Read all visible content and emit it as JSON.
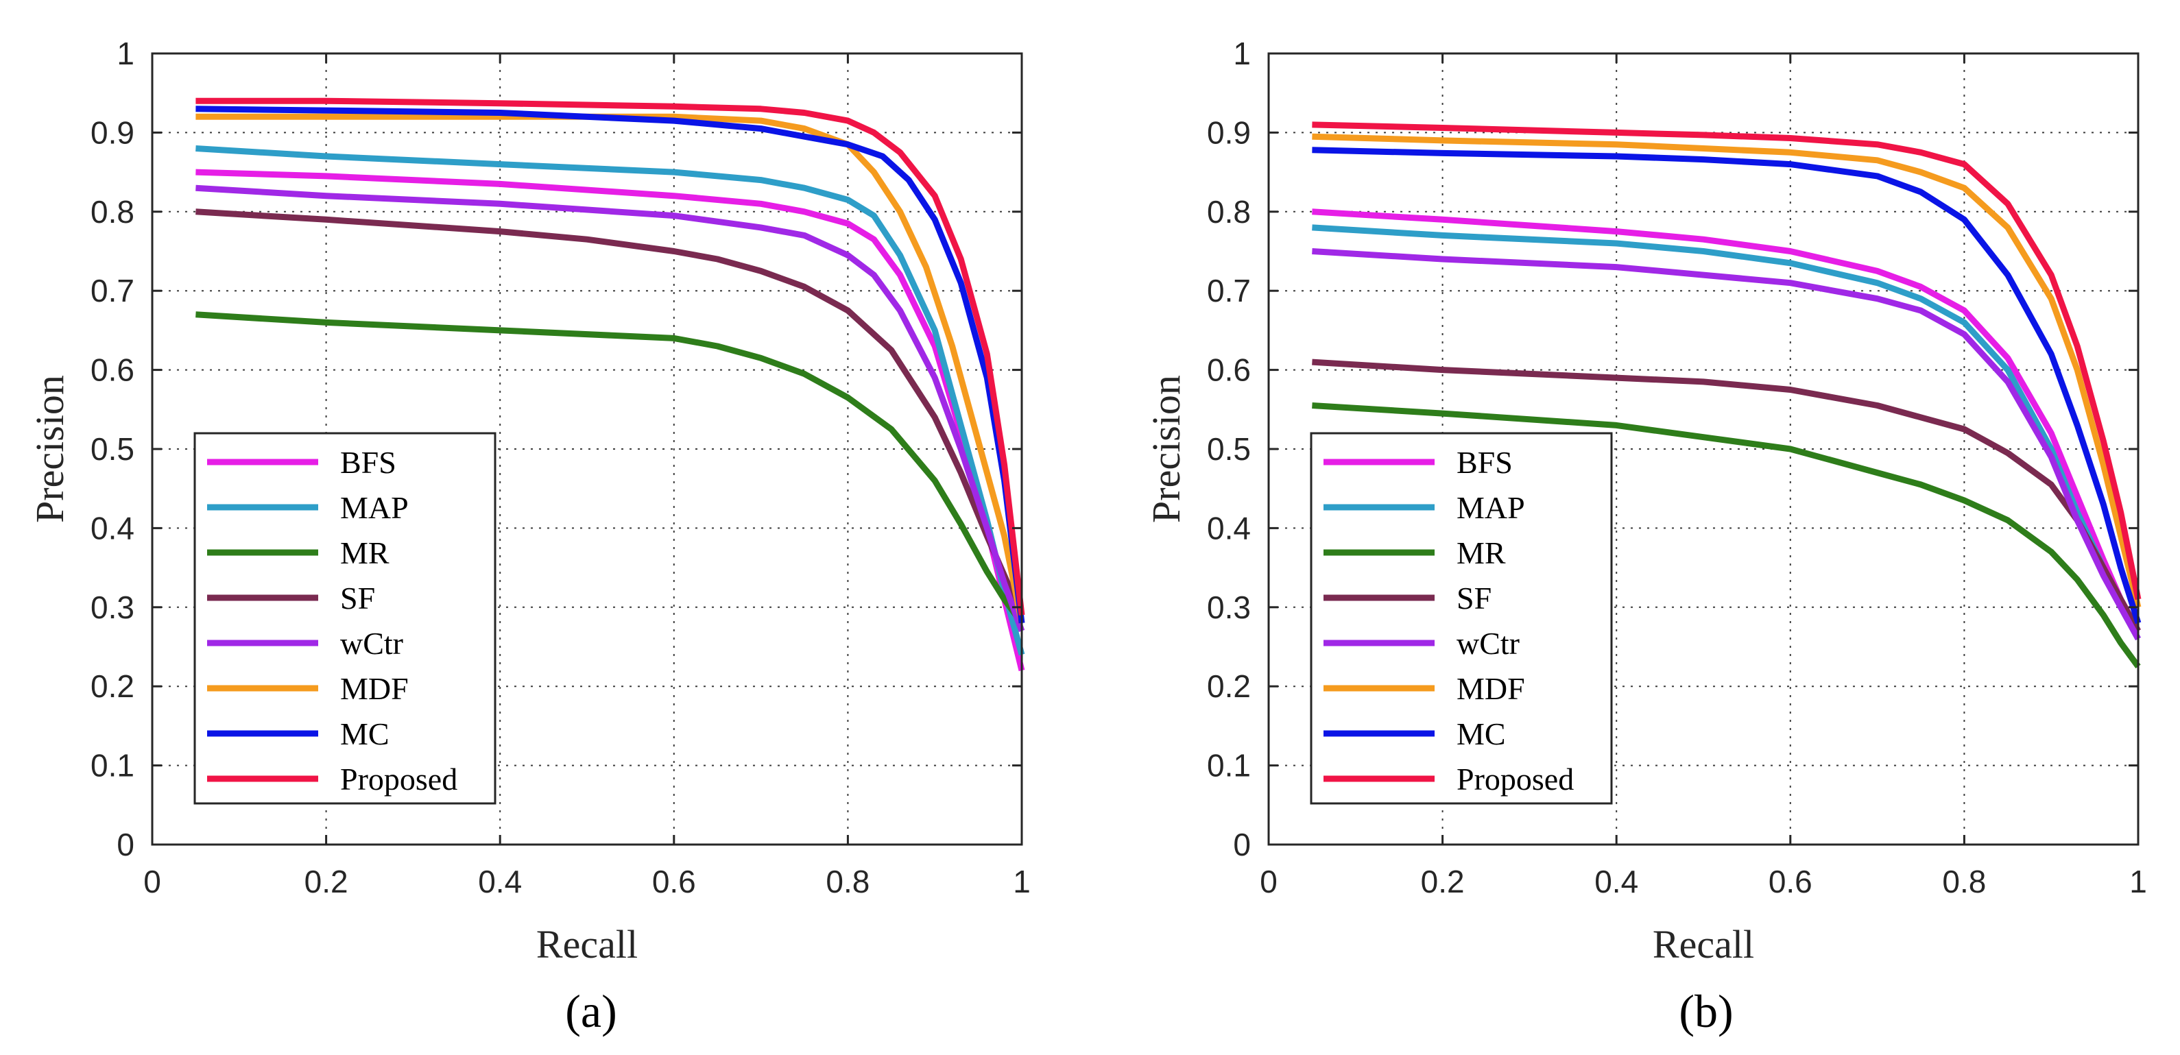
{
  "chart_data": [
    {
      "type": "line",
      "caption": "(a)",
      "xlabel": "Recall",
      "ylabel": "Precision",
      "xlim": [
        0,
        1
      ],
      "ylim": [
        0,
        1
      ],
      "xticks": [
        "0",
        "0.2",
        "0.4",
        "0.6",
        "0.8",
        "1"
      ],
      "yticks": [
        "0",
        "0.1",
        "0.2",
        "0.3",
        "0.4",
        "0.5",
        "0.6",
        "0.7",
        "0.8",
        "0.9",
        "1"
      ],
      "grid": true,
      "legend_position": "bottom-left",
      "series": [
        {
          "name": "BFS",
          "color": "#e61ee6",
          "points": [
            [
              0.05,
              0.85
            ],
            [
              0.2,
              0.845
            ],
            [
              0.4,
              0.835
            ],
            [
              0.6,
              0.82
            ],
            [
              0.7,
              0.81
            ],
            [
              0.75,
              0.8
            ],
            [
              0.8,
              0.785
            ],
            [
              0.83,
              0.765
            ],
            [
              0.86,
              0.72
            ],
            [
              0.9,
              0.63
            ],
            [
              0.93,
              0.52
            ],
            [
              0.96,
              0.4
            ],
            [
              0.98,
              0.31
            ],
            [
              1.0,
              0.22
            ]
          ]
        },
        {
          "name": "MAP",
          "color": "#2e9ec8",
          "points": [
            [
              0.05,
              0.88
            ],
            [
              0.2,
              0.87
            ],
            [
              0.4,
              0.86
            ],
            [
              0.6,
              0.85
            ],
            [
              0.7,
              0.84
            ],
            [
              0.75,
              0.83
            ],
            [
              0.8,
              0.815
            ],
            [
              0.83,
              0.795
            ],
            [
              0.86,
              0.745
            ],
            [
              0.9,
              0.65
            ],
            [
              0.93,
              0.53
            ],
            [
              0.96,
              0.41
            ],
            [
              0.98,
              0.32
            ],
            [
              1.0,
              0.24
            ]
          ]
        },
        {
          "name": "MR",
          "color": "#2e7d1a",
          "points": [
            [
              0.05,
              0.67
            ],
            [
              0.2,
              0.66
            ],
            [
              0.4,
              0.65
            ],
            [
              0.6,
              0.64
            ],
            [
              0.65,
              0.63
            ],
            [
              0.7,
              0.615
            ],
            [
              0.75,
              0.595
            ],
            [
              0.8,
              0.565
            ],
            [
              0.85,
              0.525
            ],
            [
              0.9,
              0.46
            ],
            [
              0.93,
              0.405
            ],
            [
              0.96,
              0.345
            ],
            [
              0.98,
              0.31
            ],
            [
              1.0,
              0.28
            ]
          ]
        },
        {
          "name": "SF",
          "color": "#7a2a50",
          "points": [
            [
              0.05,
              0.8
            ],
            [
              0.2,
              0.79
            ],
            [
              0.4,
              0.775
            ],
            [
              0.5,
              0.765
            ],
            [
              0.6,
              0.75
            ],
            [
              0.65,
              0.74
            ],
            [
              0.7,
              0.725
            ],
            [
              0.75,
              0.705
            ],
            [
              0.8,
              0.675
            ],
            [
              0.85,
              0.625
            ],
            [
              0.9,
              0.54
            ],
            [
              0.93,
              0.47
            ],
            [
              0.96,
              0.39
            ],
            [
              0.98,
              0.34
            ],
            [
              1.0,
              0.29
            ]
          ]
        },
        {
          "name": "wCtr",
          "color": "#a028e6",
          "points": [
            [
              0.05,
              0.83
            ],
            [
              0.2,
              0.82
            ],
            [
              0.4,
              0.81
            ],
            [
              0.6,
              0.795
            ],
            [
              0.7,
              0.78
            ],
            [
              0.75,
              0.77
            ],
            [
              0.8,
              0.745
            ],
            [
              0.83,
              0.72
            ],
            [
              0.86,
              0.675
            ],
            [
              0.9,
              0.59
            ],
            [
              0.93,
              0.5
            ],
            [
              0.96,
              0.4
            ],
            [
              0.98,
              0.33
            ],
            [
              1.0,
              0.27
            ]
          ]
        },
        {
          "name": "MDF",
          "color": "#f59b1e",
          "points": [
            [
              0.05,
              0.92
            ],
            [
              0.2,
              0.92
            ],
            [
              0.4,
              0.92
            ],
            [
              0.6,
              0.92
            ],
            [
              0.7,
              0.915
            ],
            [
              0.75,
              0.905
            ],
            [
              0.8,
              0.885
            ],
            [
              0.83,
              0.85
            ],
            [
              0.86,
              0.8
            ],
            [
              0.89,
              0.73
            ],
            [
              0.92,
              0.63
            ],
            [
              0.95,
              0.51
            ],
            [
              0.98,
              0.39
            ],
            [
              1.0,
              0.28
            ]
          ]
        },
        {
          "name": "MC",
          "color": "#0a14e6",
          "points": [
            [
              0.05,
              0.93
            ],
            [
              0.2,
              0.928
            ],
            [
              0.4,
              0.925
            ],
            [
              0.6,
              0.915
            ],
            [
              0.7,
              0.905
            ],
            [
              0.75,
              0.895
            ],
            [
              0.8,
              0.885
            ],
            [
              0.84,
              0.87
            ],
            [
              0.87,
              0.84
            ],
            [
              0.9,
              0.79
            ],
            [
              0.93,
              0.71
            ],
            [
              0.96,
              0.59
            ],
            [
              0.98,
              0.46
            ],
            [
              1.0,
              0.28
            ]
          ]
        },
        {
          "name": "Proposed",
          "color": "#f01446",
          "points": [
            [
              0.05,
              0.94
            ],
            [
              0.2,
              0.94
            ],
            [
              0.4,
              0.937
            ],
            [
              0.6,
              0.933
            ],
            [
              0.7,
              0.93
            ],
            [
              0.75,
              0.925
            ],
            [
              0.8,
              0.915
            ],
            [
              0.83,
              0.9
            ],
            [
              0.86,
              0.875
            ],
            [
              0.9,
              0.82
            ],
            [
              0.93,
              0.74
            ],
            [
              0.96,
              0.62
            ],
            [
              0.98,
              0.48
            ],
            [
              1.0,
              0.29
            ]
          ]
        }
      ]
    },
    {
      "type": "line",
      "caption": "(b)",
      "xlabel": "Recall",
      "ylabel": "Precision",
      "xlim": [
        0,
        1
      ],
      "ylim": [
        0,
        1
      ],
      "xticks": [
        "0",
        "0.2",
        "0.4",
        "0.6",
        "0.8",
        "1"
      ],
      "yticks": [
        "0",
        "0.1",
        "0.2",
        "0.3",
        "0.4",
        "0.5",
        "0.6",
        "0.7",
        "0.8",
        "0.9",
        "1"
      ],
      "grid": true,
      "legend_position": "bottom-left",
      "series": [
        {
          "name": "BFS",
          "color": "#e61ee6",
          "points": [
            [
              0.05,
              0.8
            ],
            [
              0.2,
              0.79
            ],
            [
              0.4,
              0.775
            ],
            [
              0.5,
              0.765
            ],
            [
              0.6,
              0.75
            ],
            [
              0.7,
              0.725
            ],
            [
              0.75,
              0.705
            ],
            [
              0.8,
              0.675
            ],
            [
              0.85,
              0.615
            ],
            [
              0.9,
              0.52
            ],
            [
              0.93,
              0.44
            ],
            [
              0.96,
              0.36
            ],
            [
              0.98,
              0.31
            ],
            [
              1.0,
              0.27
            ]
          ]
        },
        {
          "name": "MAP",
          "color": "#2e9ec8",
          "points": [
            [
              0.05,
              0.78
            ],
            [
              0.2,
              0.77
            ],
            [
              0.4,
              0.76
            ],
            [
              0.5,
              0.75
            ],
            [
              0.6,
              0.735
            ],
            [
              0.7,
              0.71
            ],
            [
              0.75,
              0.69
            ],
            [
              0.8,
              0.66
            ],
            [
              0.85,
              0.6
            ],
            [
              0.9,
              0.5
            ],
            [
              0.93,
              0.42
            ],
            [
              0.96,
              0.35
            ],
            [
              0.98,
              0.3
            ],
            [
              1.0,
              0.26
            ]
          ]
        },
        {
          "name": "MR",
          "color": "#2e7d1a",
          "points": [
            [
              0.05,
              0.555
            ],
            [
              0.2,
              0.545
            ],
            [
              0.4,
              0.53
            ],
            [
              0.5,
              0.515
            ],
            [
              0.6,
              0.5
            ],
            [
              0.7,
              0.47
            ],
            [
              0.75,
              0.455
            ],
            [
              0.8,
              0.435
            ],
            [
              0.85,
              0.41
            ],
            [
              0.9,
              0.37
            ],
            [
              0.93,
              0.335
            ],
            [
              0.96,
              0.29
            ],
            [
              0.98,
              0.255
            ],
            [
              1.0,
              0.225
            ]
          ]
        },
        {
          "name": "SF",
          "color": "#7a2a50",
          "points": [
            [
              0.05,
              0.61
            ],
            [
              0.2,
              0.6
            ],
            [
              0.4,
              0.59
            ],
            [
              0.5,
              0.585
            ],
            [
              0.6,
              0.575
            ],
            [
              0.7,
              0.555
            ],
            [
              0.75,
              0.54
            ],
            [
              0.8,
              0.525
            ],
            [
              0.85,
              0.495
            ],
            [
              0.9,
              0.455
            ],
            [
              0.93,
              0.41
            ],
            [
              0.96,
              0.35
            ],
            [
              0.98,
              0.31
            ],
            [
              1.0,
              0.27
            ]
          ]
        },
        {
          "name": "wCtr",
          "color": "#a028e6",
          "points": [
            [
              0.05,
              0.75
            ],
            [
              0.2,
              0.74
            ],
            [
              0.4,
              0.73
            ],
            [
              0.5,
              0.72
            ],
            [
              0.6,
              0.71
            ],
            [
              0.7,
              0.69
            ],
            [
              0.75,
              0.675
            ],
            [
              0.8,
              0.645
            ],
            [
              0.85,
              0.585
            ],
            [
              0.9,
              0.49
            ],
            [
              0.93,
              0.41
            ],
            [
              0.96,
              0.34
            ],
            [
              0.98,
              0.3
            ],
            [
              1.0,
              0.26
            ]
          ]
        },
        {
          "name": "MDF",
          "color": "#f59b1e",
          "points": [
            [
              0.05,
              0.895
            ],
            [
              0.2,
              0.89
            ],
            [
              0.4,
              0.885
            ],
            [
              0.5,
              0.88
            ],
            [
              0.6,
              0.875
            ],
            [
              0.7,
              0.865
            ],
            [
              0.75,
              0.85
            ],
            [
              0.8,
              0.83
            ],
            [
              0.85,
              0.78
            ],
            [
              0.9,
              0.69
            ],
            [
              0.93,
              0.6
            ],
            [
              0.96,
              0.48
            ],
            [
              0.98,
              0.39
            ],
            [
              1.0,
              0.3
            ]
          ]
        },
        {
          "name": "MC",
          "color": "#0a14e6",
          "points": [
            [
              0.05,
              0.878
            ],
            [
              0.2,
              0.874
            ],
            [
              0.4,
              0.87
            ],
            [
              0.5,
              0.866
            ],
            [
              0.6,
              0.86
            ],
            [
              0.7,
              0.845
            ],
            [
              0.75,
              0.825
            ],
            [
              0.8,
              0.79
            ],
            [
              0.85,
              0.72
            ],
            [
              0.9,
              0.62
            ],
            [
              0.93,
              0.53
            ],
            [
              0.96,
              0.43
            ],
            [
              0.98,
              0.35
            ],
            [
              1.0,
              0.28
            ]
          ]
        },
        {
          "name": "Proposed",
          "color": "#f01446",
          "points": [
            [
              0.05,
              0.91
            ],
            [
              0.2,
              0.906
            ],
            [
              0.4,
              0.9
            ],
            [
              0.5,
              0.897
            ],
            [
              0.6,
              0.893
            ],
            [
              0.7,
              0.885
            ],
            [
              0.75,
              0.875
            ],
            [
              0.8,
              0.86
            ],
            [
              0.85,
              0.81
            ],
            [
              0.9,
              0.72
            ],
            [
              0.93,
              0.63
            ],
            [
              0.96,
              0.51
            ],
            [
              0.98,
              0.42
            ],
            [
              1.0,
              0.31
            ]
          ]
        }
      ]
    }
  ]
}
